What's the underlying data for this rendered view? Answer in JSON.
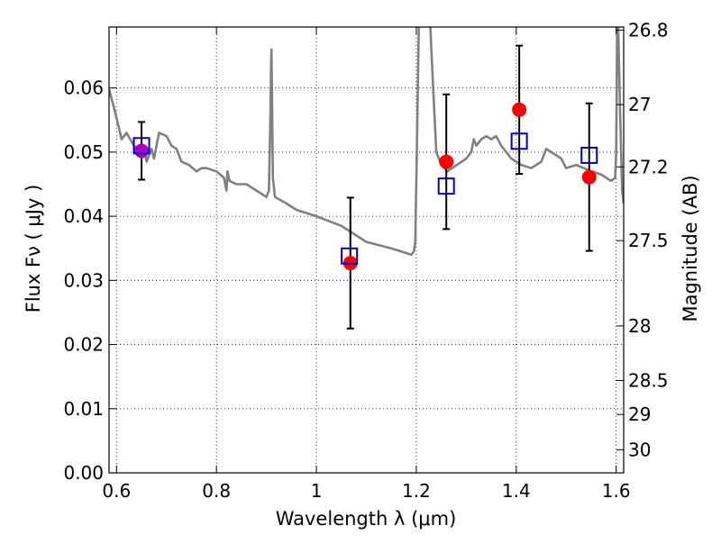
{
  "chart_data": {
    "type": "scatter",
    "xlabel": "Wavelength  λ (μm)",
    "ylabel": "Flux  Fν  ( μJy )",
    "ylabel_right": "Magnitude (AB)",
    "xlim": [
      0.585,
      1.615
    ],
    "ylim": [
      0.0,
      0.0695
    ],
    "grid": true,
    "x_ticks": [
      0.6,
      0.8,
      1.0,
      1.2,
      1.4,
      1.6
    ],
    "x_tick_labels": [
      "0.6",
      "0.8",
      "1",
      "1.2",
      "1.4",
      "1.6"
    ],
    "y_ticks": [
      0.0,
      0.01,
      0.02,
      0.03,
      0.04,
      0.05,
      0.06
    ],
    "y_tick_labels": [
      "0.00",
      "0.01",
      "0.02",
      "0.03",
      "0.04",
      "0.05",
      "0.06"
    ],
    "right_axis": {
      "ticks": [
        {
          "label": "26.8",
          "flux": 0.069
        },
        {
          "label": "27",
          "flux": 0.0574
        },
        {
          "label": "27.2",
          "flux": 0.0477
        },
        {
          "label": "27.5",
          "flux": 0.0362
        },
        {
          "label": "28",
          "flux": 0.0229
        },
        {
          "label": "28.5",
          "flux": 0.0144
        },
        {
          "label": "29",
          "flux": 0.0091
        },
        {
          "label": "30",
          "flux": 0.0036
        }
      ]
    },
    "colors": {
      "model": "#808080",
      "observed": "#ff0000",
      "observed_first": "#aa00cc",
      "model_points": "#0000cc",
      "errorbar": "#000000"
    },
    "model_spectrum": {
      "x": [
        0.585,
        0.598,
        0.61,
        0.62,
        0.635,
        0.648,
        0.655,
        0.66,
        0.67,
        0.675,
        0.685,
        0.7,
        0.71,
        0.72,
        0.73,
        0.745,
        0.76,
        0.77,
        0.78,
        0.8,
        0.815,
        0.82,
        0.822,
        0.826,
        0.84,
        0.86,
        0.87,
        0.88,
        0.9,
        0.905,
        0.908,
        0.909,
        0.91,
        0.911,
        0.913,
        0.917,
        0.94,
        0.96,
        1.0,
        1.05,
        1.07,
        1.1,
        1.15,
        1.19,
        1.195,
        1.198,
        1.201,
        1.205,
        1.215,
        1.228,
        1.23,
        1.235,
        1.24,
        1.25,
        1.262,
        1.3,
        1.31,
        1.315,
        1.32,
        1.33,
        1.34,
        1.35,
        1.36,
        1.37,
        1.39,
        1.41,
        1.43,
        1.45,
        1.46,
        1.47,
        1.49,
        1.5,
        1.52,
        1.55,
        1.57,
        1.59,
        1.598,
        1.6,
        1.602,
        1.604,
        1.608,
        1.612,
        1.615
      ],
      "y": [
        0.0598,
        0.056,
        0.052,
        0.053,
        0.051,
        0.0495,
        0.051,
        0.0485,
        0.0505,
        0.049,
        0.053,
        0.0525,
        0.051,
        0.0505,
        0.0485,
        0.048,
        0.047,
        0.0475,
        0.0475,
        0.047,
        0.046,
        0.044,
        0.047,
        0.0455,
        0.045,
        0.045,
        0.0445,
        0.044,
        0.043,
        0.044,
        0.056,
        0.062,
        0.066,
        0.06,
        0.046,
        0.043,
        0.042,
        0.041,
        0.04,
        0.0385,
        0.0375,
        0.036,
        0.035,
        0.034,
        0.0345,
        0.036,
        0.05,
        0.0696,
        0.0696,
        0.0696,
        0.066,
        0.058,
        0.05,
        0.048,
        0.047,
        0.049,
        0.05,
        0.052,
        0.051,
        0.052,
        0.0525,
        0.052,
        0.0525,
        0.051,
        0.049,
        0.048,
        0.0475,
        0.0485,
        0.0505,
        0.05,
        0.049,
        0.0475,
        0.048,
        0.047,
        0.0465,
        0.0455,
        0.046,
        0.05,
        0.0696,
        0.0696,
        0.056,
        0.044,
        0.042
      ]
    },
    "observed_points": [
      {
        "x": 0.65,
        "y": 0.0502,
        "err": 0.0045
      },
      {
        "x": 1.068,
        "y": 0.0327,
        "err": 0.0102
      },
      {
        "x": 1.26,
        "y": 0.0485,
        "err": 0.0105
      },
      {
        "x": 1.406,
        "y": 0.0566,
        "err": 0.01
      },
      {
        "x": 1.546,
        "y": 0.0461,
        "err": 0.0115
      }
    ],
    "model_points": [
      {
        "x": 0.65,
        "y": 0.051
      },
      {
        "x": 1.066,
        "y": 0.0338
      },
      {
        "x": 1.26,
        "y": 0.0447
      },
      {
        "x": 1.406,
        "y": 0.0517
      },
      {
        "x": 1.546,
        "y": 0.0495
      }
    ]
  }
}
